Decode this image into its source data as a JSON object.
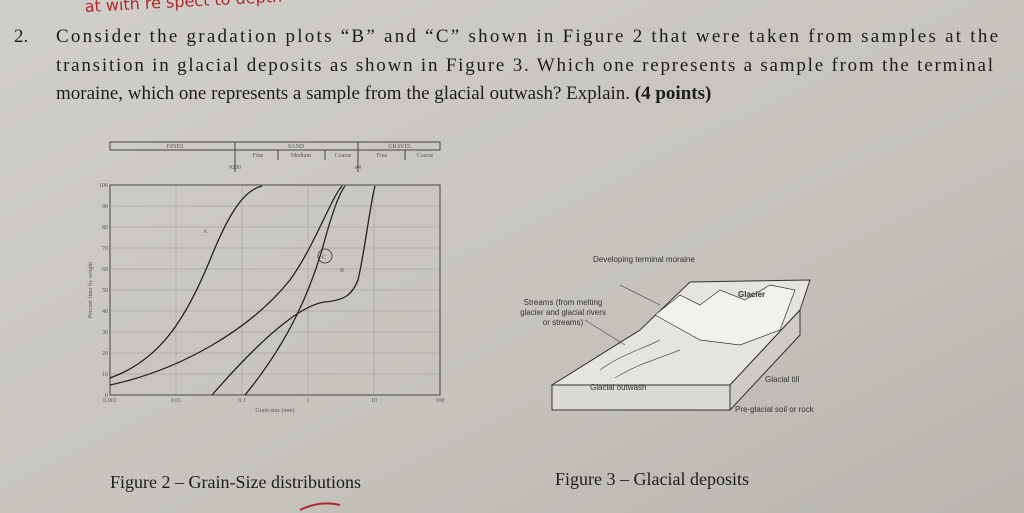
{
  "handwriting": "at with re spect to depth",
  "question": {
    "number": "2.",
    "lines": [
      "Consider the gradation plots “B” and “C” shown in Figure 2 that were taken from samples at the",
      "transition in glacial deposits as shown in Figure 3.  Which one represents a sample from the terminal",
      "moraine, which one represents a sample from the glacial outwash? Explain."
    ],
    "points": "(4 points)"
  },
  "figure2": {
    "header": [
      "FINES",
      "SAND",
      "GRAVEL"
    ],
    "subheader": [
      "Fine",
      "Medium",
      "Coarse",
      "Fine",
      "Coarse"
    ],
    "sieves": [
      "#200",
      "#4"
    ],
    "y_label": "Percent finer by weight",
    "y_ticks": [
      "100",
      "90",
      "80",
      "70",
      "60",
      "50",
      "40",
      "30",
      "20",
      "10",
      "0"
    ],
    "x_label": "Grain size (mm)",
    "x_ticks": [
      "0.001",
      "0.01",
      "0.1",
      "1",
      "10",
      "100"
    ],
    "curve_labels": [
      "A",
      "C",
      "B"
    ],
    "caption": "Figure 2 – Grain-Size distributions"
  },
  "figure3": {
    "labels": {
      "moraine": "Developing terminal moraine",
      "glacier": "Glacier",
      "streams": "Streams (from melting glacier and glacial rivers or streams)",
      "outwash": "Glacial outwash",
      "till": "Glacial till",
      "bedrock": "Pre-glacial soil or rock"
    },
    "caption": "Figure 3 – Glacial deposits"
  }
}
